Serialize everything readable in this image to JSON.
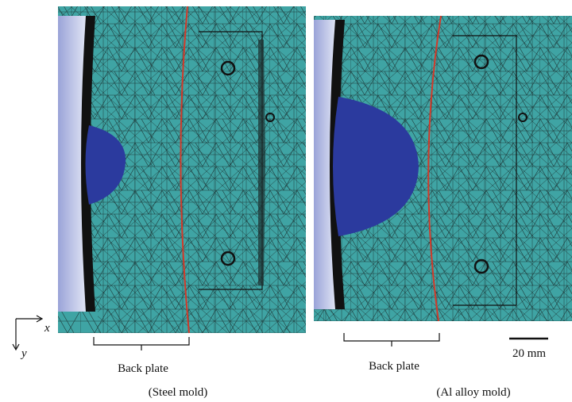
{
  "axes": {
    "x": "x",
    "y": "y"
  },
  "panels": [
    {
      "label": "Back plate",
      "caption": "(Steel mold)"
    },
    {
      "label": "Back plate",
      "caption": "(Al alloy mold)"
    }
  ],
  "scale_bar": "20 mm"
}
